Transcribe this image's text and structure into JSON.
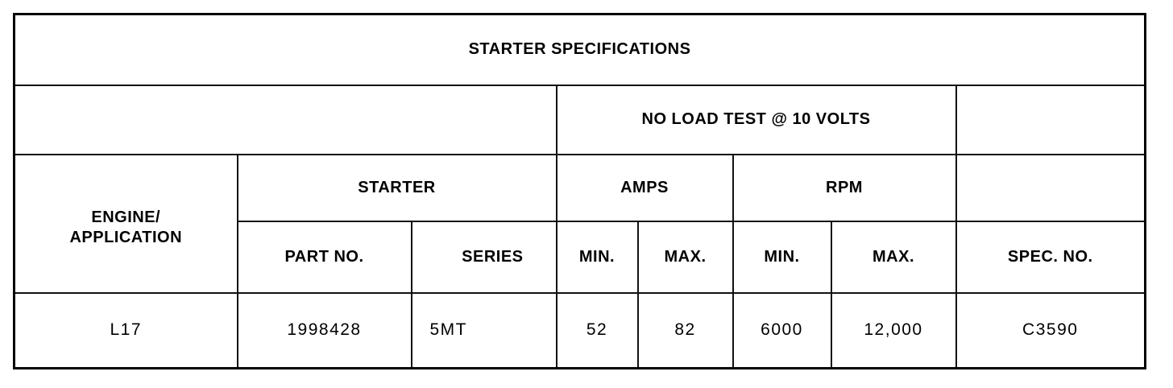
{
  "title": "STARTER SPECIFICATIONS",
  "group_header": "NO LOAD TEST @ 10 VOLTS",
  "headers": {
    "engine": "ENGINE/\nAPPLICATION",
    "starter": "STARTER",
    "amps": "AMPS",
    "rpm": "RPM",
    "part_no": "PART NO.",
    "series": "SERIES",
    "amps_min": "MIN.",
    "amps_max": "MAX.",
    "rpm_min": "MIN.",
    "rpm_max": "MAX.",
    "spec_no": "SPEC. NO."
  },
  "rows": [
    {
      "engine": "L17",
      "part_no": "1998428",
      "series": "5MT",
      "amps_min": "52",
      "amps_max": "82",
      "rpm_min": "6000",
      "rpm_max": "12,000",
      "spec_no": "C3590"
    }
  ]
}
